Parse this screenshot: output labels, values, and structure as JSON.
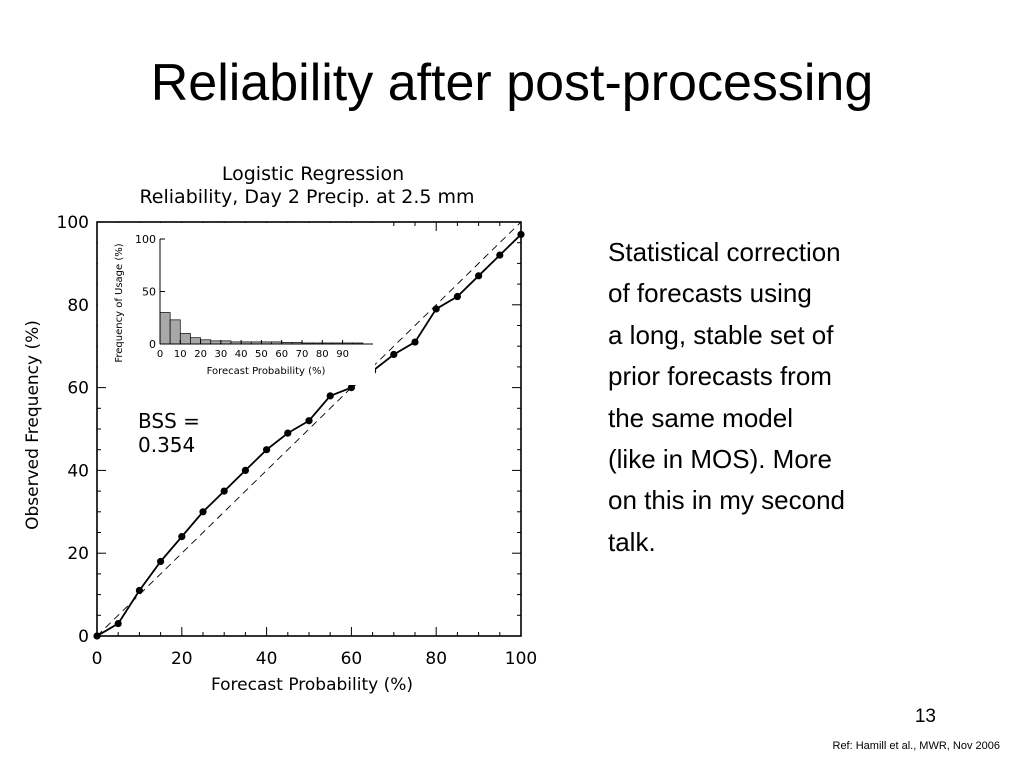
{
  "slide": {
    "title": "Reliability after post-processing",
    "body_lines": [
      "Statistical correction",
      "of forecasts using",
      "a long, stable set of",
      "prior forecasts from",
      "the same model",
      "(like in MOS). More",
      "on this in my second",
      "talk."
    ],
    "slide_number": "13",
    "reference": "Ref: Hamill et al., MWR, Nov 2006"
  },
  "chart_data": [
    {
      "type": "line",
      "title": "Logistic Regression",
      "subtitle": "Reliability, Day 2 Precip. at 2.5 mm",
      "xlabel": "Forecast Probability (%)",
      "ylabel": "Observed Frequency (%)",
      "xlim": [
        0,
        100
      ],
      "ylim": [
        0,
        100
      ],
      "xticks": [
        0,
        20,
        40,
        60,
        80,
        100
      ],
      "yticks": [
        0,
        20,
        40,
        60,
        80,
        100
      ],
      "x_tick_labels": [
        "0",
        "20",
        "40",
        "60",
        "80",
        "100"
      ],
      "y_tick_labels": [
        "0",
        "20",
        "40",
        "60",
        "80",
        "100"
      ],
      "grid": false,
      "diagonal_reference": true,
      "annotation_lines": [
        "BSS =",
        "0.354"
      ],
      "series": [
        {
          "x": [
            0,
            5,
            10,
            15,
            20,
            25,
            30,
            35,
            40,
            45,
            50,
            55,
            60,
            65,
            70,
            75,
            80,
            85,
            90,
            95,
            100
          ],
          "y": [
            0,
            3,
            11,
            18,
            24,
            30,
            35,
            40,
            45,
            49,
            52,
            58,
            60,
            64,
            68,
            71,
            79,
            82,
            87,
            92,
            97
          ]
        }
      ]
    },
    {
      "type": "bar",
      "title": "",
      "xlabel": "Forecast Probability (%)",
      "ylabel": "Frequency of Usage (%)",
      "xlim": [
        0,
        100
      ],
      "ylim": [
        0,
        100
      ],
      "xticks": [
        0,
        10,
        20,
        30,
        40,
        50,
        60,
        70,
        80,
        90
      ],
      "yticks": [
        0,
        50,
        100
      ],
      "x_tick_labels": [
        "0",
        "10",
        "20",
        "30",
        "40",
        "50",
        "60",
        "70",
        "80",
        "90"
      ],
      "y_tick_labels": [
        "0",
        "50",
        "100"
      ],
      "bin_width": 5,
      "bins": [
        0,
        5,
        10,
        15,
        20,
        25,
        30,
        35,
        40,
        45,
        50,
        55,
        60,
        65,
        70,
        75,
        80,
        85,
        90,
        95
      ],
      "values": [
        30,
        23,
        10,
        6,
        4,
        3,
        3,
        2,
        2,
        2,
        2,
        2,
        1.5,
        1.5,
        1,
        1,
        1,
        1,
        1,
        1
      ],
      "bar_color": "#a8a8a8"
    }
  ]
}
